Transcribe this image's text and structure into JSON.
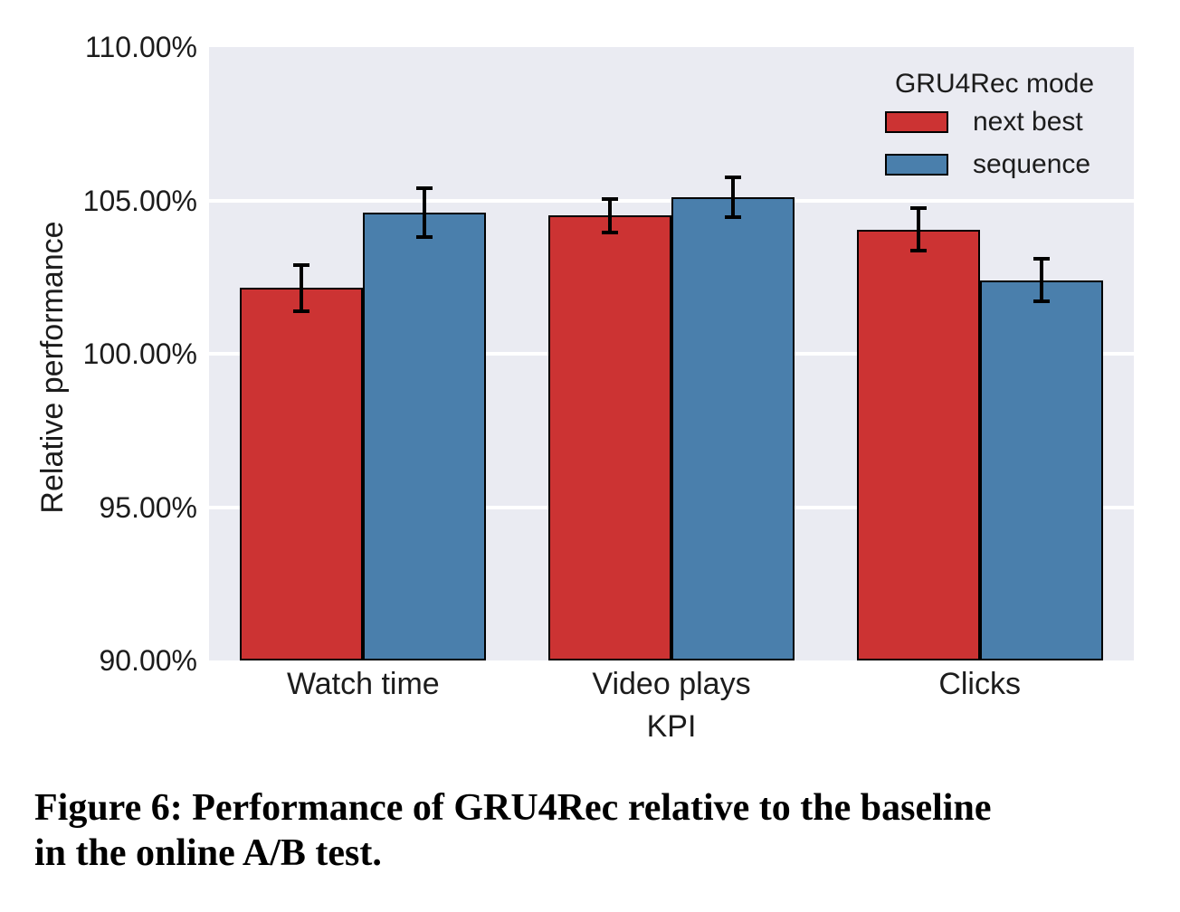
{
  "figure_caption": {
    "lines": [
      "Figure 6: Performance of GRU4Rec relative to the baseline",
      "in the online A/B test."
    ]
  },
  "colors": {
    "plot_background": "#eaebf2",
    "gridline": "#ffffff",
    "next_best": "#cc3333",
    "sequence": "#4a7fac",
    "error_bar": "#000000",
    "text": "#1c1c1c"
  },
  "chart_data": {
    "type": "bar",
    "title": "",
    "xlabel": "KPI",
    "ylabel": "Relative performance",
    "categories": [
      "Watch time",
      "Video plays",
      "Clicks"
    ],
    "series": [
      {
        "name": "next best",
        "color": "#cc3333",
        "values": [
          102.15,
          104.5,
          104.05
        ],
        "errors": [
          0.75,
          0.55,
          0.7
        ]
      },
      {
        "name": "sequence",
        "color": "#4a7fac",
        "values": [
          104.6,
          105.1,
          102.4
        ],
        "errors": [
          0.8,
          0.65,
          0.7
        ]
      }
    ],
    "ylim": [
      90,
      110
    ],
    "yticks": [
      {
        "value": 90,
        "label": "90.00%"
      },
      {
        "value": 95,
        "label": "95.00%"
      },
      {
        "value": 100,
        "label": "100.00%"
      },
      {
        "value": 105,
        "label": "105.00%"
      },
      {
        "value": 110,
        "label": "110.00%"
      }
    ],
    "grid": true,
    "legend": {
      "title": "GRU4Rec mode",
      "position": "upper right",
      "entries": [
        "next best",
        "sequence"
      ]
    }
  }
}
